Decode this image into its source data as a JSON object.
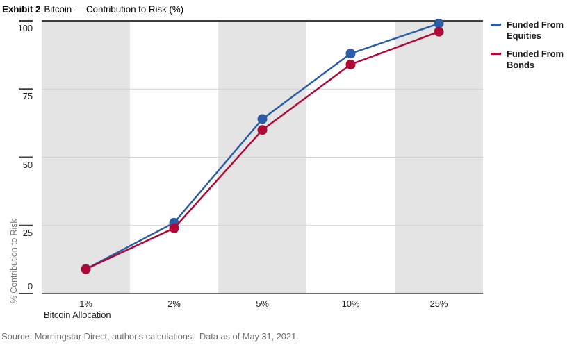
{
  "header": {
    "exhibit_label": "Exhibit 2",
    "title": "Bitcoin — Contribution to Risk (%)"
  },
  "chart_data": {
    "type": "line",
    "title": "Bitcoin — Contribution to Risk (%)",
    "categories": [
      "1%",
      "2%",
      "5%",
      "10%",
      "25%"
    ],
    "series": [
      {
        "name": "Funded From Equities",
        "color": "#2A5DA8",
        "values": [
          9,
          26,
          64,
          88,
          99
        ]
      },
      {
        "name": "Funded From Bonds",
        "color": "#B00936",
        "values": [
          9,
          24,
          60,
          84,
          96
        ]
      }
    ],
    "xlabel": "Bitcoin Allocation",
    "ylabel": "% Contribution to Risk",
    "ylim": [
      0,
      100
    ],
    "yticks": [
      0,
      25,
      50,
      75,
      100
    ],
    "grid": true,
    "legend_position": "right",
    "band_color": "#E4E4E4",
    "banded_columns": [
      0,
      2,
      4
    ],
    "gridline_color": "#D0D0D0",
    "axis_color": "#3D3D3D",
    "marker": "circle"
  },
  "footer": {
    "source": "Source: Morningstar Direct, author's calculations.  Data as of May 31, 2021."
  }
}
